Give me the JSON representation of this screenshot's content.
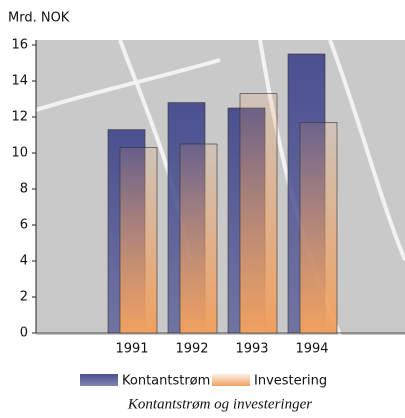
{
  "chart_data": {
    "type": "bar",
    "caption": "Kontantstrøm og investeringer",
    "y_label": "Mrd. NOK",
    "categories": [
      "1991",
      "1992",
      "1993",
      "1994"
    ],
    "series": [
      {
        "name": "Kontantstrøm",
        "color": "#4b5090",
        "values": [
          11.3,
          12.8,
          12.5,
          15.5
        ]
      },
      {
        "name": "Investering",
        "color": "#f0a060",
        "values": [
          10.3,
          10.5,
          13.3,
          11.7
        ]
      }
    ],
    "ylim": [
      0,
      16
    ],
    "yticks": [
      0,
      2,
      4,
      6,
      8,
      10,
      12,
      14,
      16
    ]
  }
}
